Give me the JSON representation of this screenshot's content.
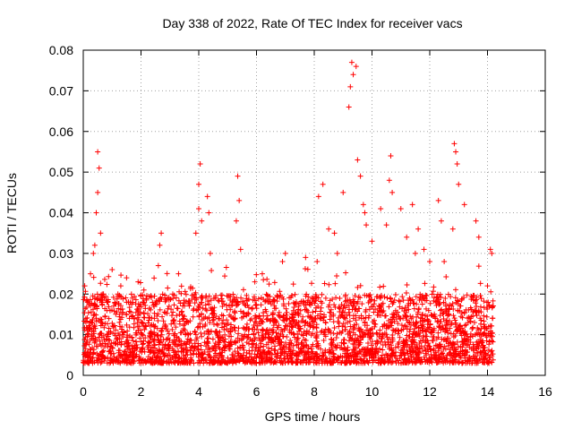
{
  "chart_data": {
    "type": "scatter",
    "title": "Day 338 of 2022, Rate Of TEC Index for receiver vacs",
    "xlabel": "GPS time / hours",
    "ylabel": "ROTI / TECUs",
    "xlim": [
      0,
      16
    ],
    "ylim": [
      0,
      0.08
    ],
    "x_ticks": [
      0,
      2,
      4,
      6,
      8,
      10,
      12,
      14,
      16
    ],
    "x_tick_labels": [
      "0",
      "2",
      "4",
      "6",
      "8",
      "10",
      "12",
      "14",
      "16"
    ],
    "y_ticks": [
      0,
      0.01,
      0.02,
      0.03,
      0.04,
      0.05,
      0.06,
      0.07,
      0.08
    ],
    "y_tick_labels": [
      "0",
      "0.01",
      "0.02",
      "0.03",
      "0.04",
      "0.05",
      "0.06",
      "0.07",
      "0.08"
    ],
    "grid": true,
    "marker": "+",
    "color": "#ff0000",
    "x_data_range": [
      0,
      14.2
    ],
    "bulk_band": [
      0.003,
      0.02
    ],
    "series": [
      {
        "name": "ROTI",
        "x": [
          0.05,
          0.15,
          0.25,
          0.35,
          0.4,
          0.45,
          0.5,
          0.5,
          0.55,
          0.6,
          0.7,
          0.85,
          1.0,
          1.2,
          1.3,
          1.5,
          1.7,
          1.9,
          2.1,
          2.6,
          2.65,
          2.7,
          3.1,
          3.3,
          3.9,
          4.0,
          4.0,
          4.05,
          4.1,
          4.3,
          4.35,
          4.4,
          5.3,
          5.35,
          5.4,
          5.45,
          6.2,
          6.9,
          7.0,
          7.7,
          8.1,
          8.15,
          8.3,
          8.5,
          8.7,
          8.8,
          9.0,
          9.2,
          9.25,
          9.3,
          9.35,
          9.45,
          9.5,
          9.6,
          9.7,
          9.75,
          9.8,
          10.0,
          10.3,
          10.5,
          10.6,
          10.65,
          10.7,
          11.0,
          11.2,
          11.4,
          11.5,
          11.6,
          11.8,
          12.0,
          12.3,
          12.4,
          12.5,
          12.8,
          12.85,
          12.9,
          12.95,
          13.0,
          13.2,
          13.6,
          13.7,
          14.0,
          14.1,
          14.15
        ],
        "y": [
          0.022,
          0.018,
          0.025,
          0.03,
          0.032,
          0.04,
          0.045,
          0.055,
          0.051,
          0.035,
          0.02,
          0.018,
          0.026,
          0.02,
          0.022,
          0.024,
          0.019,
          0.023,
          0.021,
          0.027,
          0.032,
          0.035,
          0.02,
          0.025,
          0.035,
          0.041,
          0.047,
          0.052,
          0.038,
          0.044,
          0.04,
          0.03,
          0.038,
          0.049,
          0.043,
          0.031,
          0.025,
          0.028,
          0.03,
          0.029,
          0.028,
          0.044,
          0.047,
          0.036,
          0.035,
          0.03,
          0.045,
          0.066,
          0.071,
          0.077,
          0.074,
          0.076,
          0.053,
          0.049,
          0.042,
          0.04,
          0.037,
          0.033,
          0.041,
          0.037,
          0.048,
          0.054,
          0.045,
          0.041,
          0.034,
          0.042,
          0.03,
          0.036,
          0.031,
          0.028,
          0.043,
          0.038,
          0.028,
          0.036,
          0.057,
          0.055,
          0.052,
          0.047,
          0.042,
          0.038,
          0.034,
          0.022,
          0.031,
          0.03
        ]
      }
    ]
  }
}
